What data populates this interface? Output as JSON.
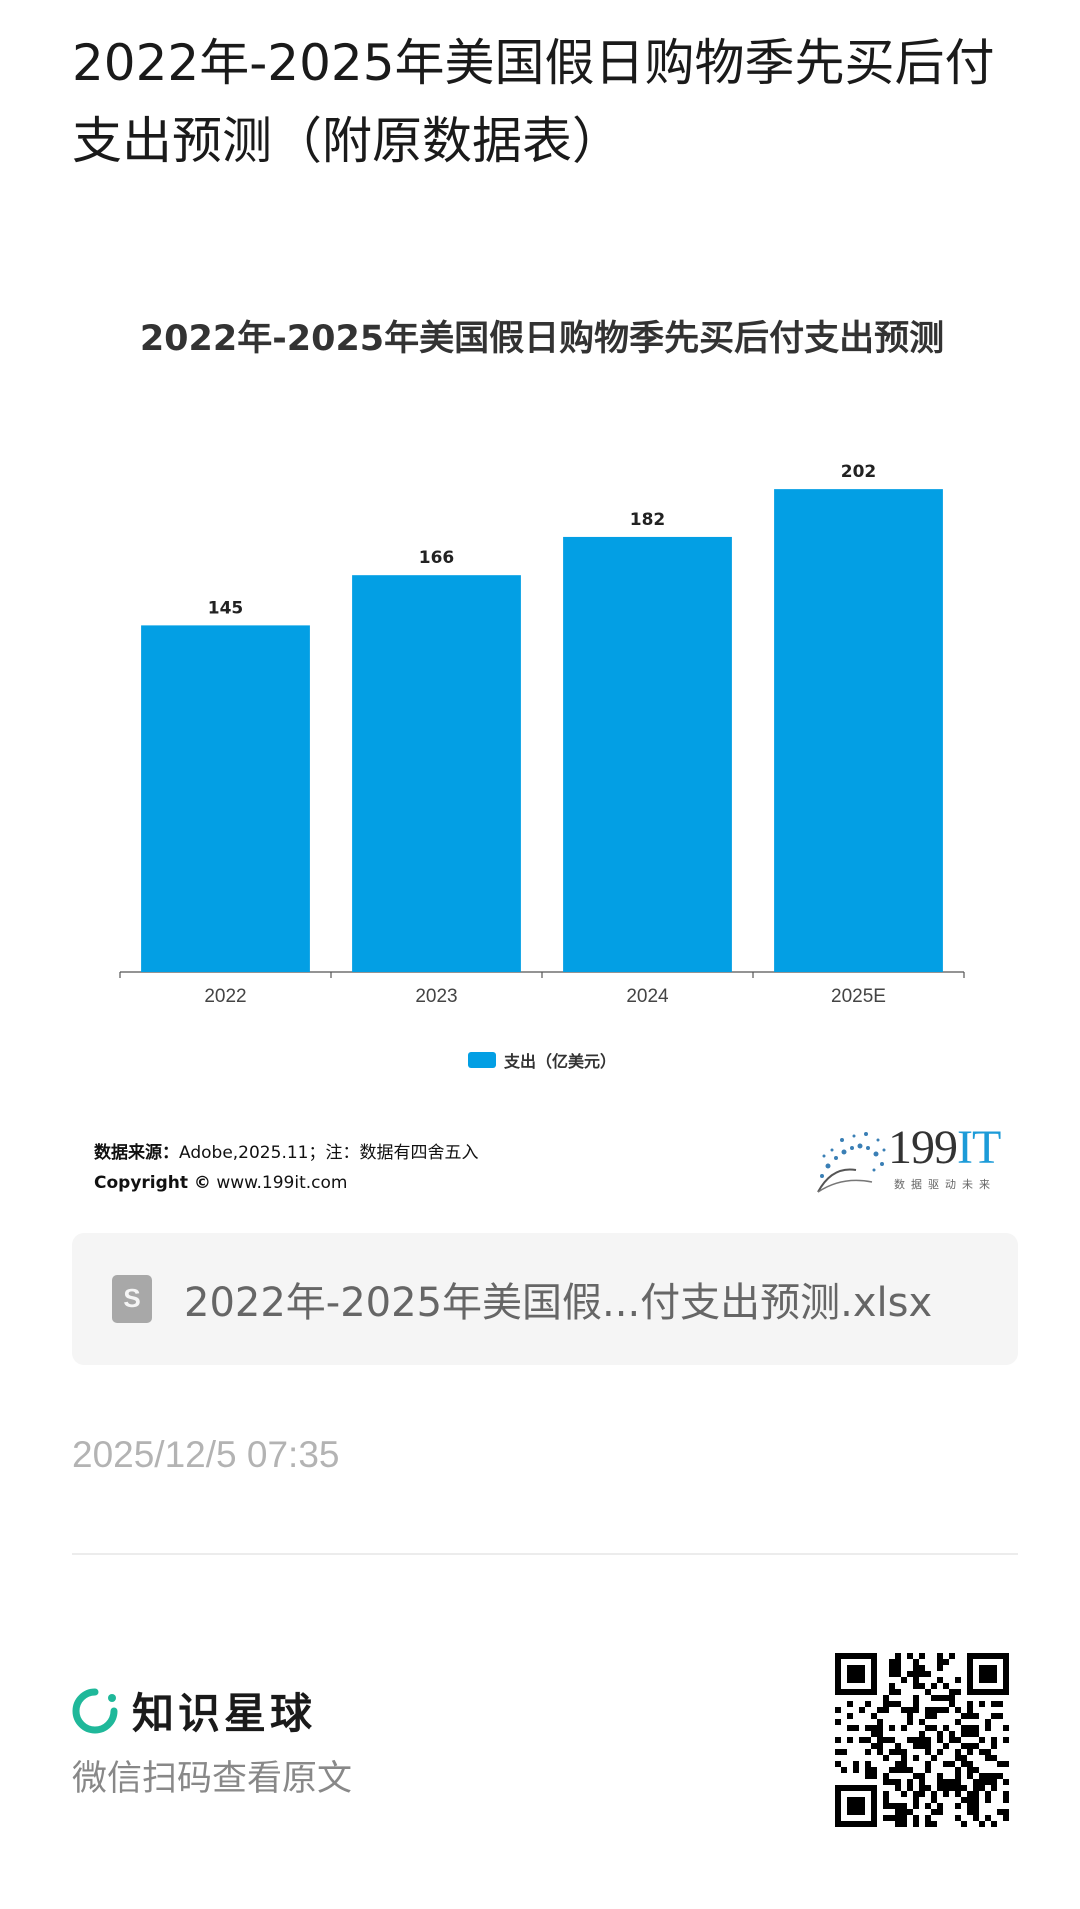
{
  "page": {
    "title": "2022年-2025年美国假日购物季先买后付支出预测（附原数据表）"
  },
  "chart_data": {
    "type": "bar",
    "title": "2022年-2025年美国假日购物季先买后付支出预测",
    "categories": [
      "2022",
      "2023",
      "2024",
      "2025E"
    ],
    "series": [
      {
        "name": "支出（亿美元）",
        "values": [
          145,
          166,
          182,
          202
        ],
        "color": "#039fe4"
      }
    ],
    "data_labels": [
      "145",
      "166",
      "182",
      "202"
    ],
    "ylim": [
      0,
      210
    ],
    "grid": false,
    "legend_position": "bottom"
  },
  "source": {
    "label": "数据来源：",
    "text": "Adobe,2025.11；注：数据有四舍五入",
    "copyright_label": "Copyright ©",
    "copyright_url": "www.199it.com"
  },
  "brand_logo": {
    "name_main": "199",
    "name_accent": "IT",
    "slogan": "数据驱动未来",
    "accent_color": "#1c9bd8"
  },
  "attachment": {
    "icon": "spreadsheet-file-icon",
    "file_name": "2022年-2025年美国假...付支出预测.xlsx"
  },
  "meta": {
    "timestamp": "2025/12/5 07:35"
  },
  "footer": {
    "brand_icon": "ring-logo-icon",
    "brand_name": "知识星球",
    "brand_color": "#1fb89a",
    "hint": "微信扫码查看原文",
    "qr_icon": "qr-code-icon"
  }
}
